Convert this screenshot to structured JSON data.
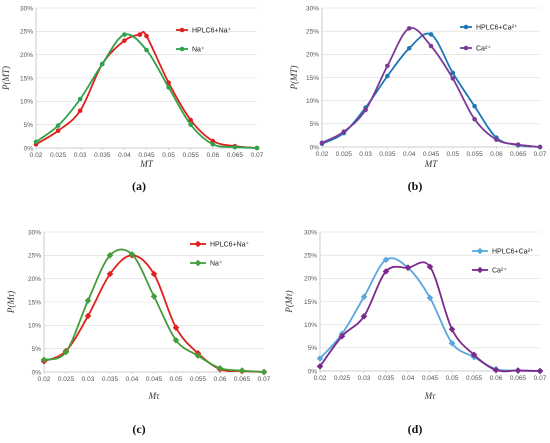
{
  "colors": {
    "red": "#e0201c",
    "green": "#2ea34b",
    "blue": "#1c78b4",
    "purple": "#7a3a98",
    "green_c": "#449d3a",
    "light_blue": "#5aa7dd",
    "purple_d": "#7b2a8c",
    "axis": "#bfbfbf",
    "grid": "#d9d9d9"
  },
  "chart_data": [
    {
      "id": "a",
      "panel_label": "(a)",
      "type": "line",
      "xlabel": "MT",
      "ylabel": "P(MT)",
      "xlim": [
        0.02,
        0.07
      ],
      "ylim": [
        0,
        30
      ],
      "x_ticks": [
        "0.02",
        "0.025",
        "0.03",
        "0.035",
        "0.04",
        "0.045",
        "0.05",
        "0.055",
        "0.06",
        "0.065",
        "0.07"
      ],
      "y_ticks": [
        "0%",
        "5%",
        "10%",
        "15%",
        "20%",
        "25%",
        "30%"
      ],
      "gridlines": true,
      "legend_position": "top-right",
      "series": [
        {
          "name": "HPLC6+Na⁺",
          "color_key": "red",
          "x": [
            0.02,
            0.025,
            0.03,
            0.035,
            0.04,
            0.0435,
            0.045,
            0.05,
            0.055,
            0.06,
            0.065,
            0.07
          ],
          "values": [
            0.8,
            3.7,
            8.0,
            18.0,
            23.0,
            24.3,
            24.0,
            14.0,
            6.0,
            1.5,
            0.4,
            0.0
          ]
        },
        {
          "name": "Na⁺",
          "color_key": "green",
          "x": [
            0.02,
            0.025,
            0.03,
            0.035,
            0.04,
            0.045,
            0.05,
            0.055,
            0.06,
            0.065,
            0.07
          ],
          "values": [
            1.3,
            4.8,
            10.5,
            18.0,
            24.3,
            21.0,
            13.0,
            5.0,
            0.8,
            0.2,
            0.0
          ]
        }
      ]
    },
    {
      "id": "b",
      "panel_label": "(b)",
      "type": "line",
      "xlabel": "MT",
      "ylabel": "P(MT)",
      "xlim": [
        0.02,
        0.07
      ],
      "ylim": [
        0,
        30
      ],
      "x_ticks": [
        "0.02",
        "0.025",
        "0.03",
        "0.035",
        "0.04",
        "0.045",
        "0.05",
        "0.055",
        "0.06",
        "0.065",
        "0.07"
      ],
      "y_ticks": [
        "0%",
        "5%",
        "10%",
        "15%",
        "20%",
        "25%",
        "30%"
      ],
      "gridlines": true,
      "legend_position": "top-right",
      "series": [
        {
          "name": "HPLC6+Ca²⁺",
          "color_key": "blue",
          "x": [
            0.02,
            0.025,
            0.03,
            0.035,
            0.04,
            0.045,
            0.05,
            0.055,
            0.06,
            0.065,
            0.07
          ],
          "values": [
            0.7,
            3.0,
            8.5,
            15.3,
            21.3,
            24.3,
            16.0,
            8.8,
            2.0,
            0.4,
            0.0
          ]
        },
        {
          "name": "Ca²⁺",
          "color_key": "purple",
          "x": [
            0.02,
            0.025,
            0.03,
            0.035,
            0.04,
            0.045,
            0.05,
            0.055,
            0.06,
            0.065,
            0.07
          ],
          "values": [
            0.9,
            3.3,
            8.0,
            17.5,
            25.6,
            21.8,
            14.8,
            6.0,
            1.6,
            0.5,
            0.0
          ]
        }
      ]
    },
    {
      "id": "c",
      "panel_label": "(c)",
      "type": "line",
      "xlabel": "Mτ",
      "ylabel": "P(Mτ)",
      "xlim": [
        0.02,
        0.07
      ],
      "ylim": [
        0,
        30
      ],
      "x_ticks": [
        "0.02",
        "0.025",
        "0.03",
        "0.035",
        "0.04",
        "0.045",
        "0.05",
        "0.055",
        "0.06",
        "0.065",
        "0.07"
      ],
      "y_ticks": [
        "0%",
        "5%",
        "10%",
        "15%",
        "20%",
        "25%",
        "30%"
      ],
      "gridlines": true,
      "legend_position": "top-right",
      "series": [
        {
          "name": "HPLC6+Na⁺",
          "color_key": "red",
          "x": [
            0.02,
            0.025,
            0.03,
            0.035,
            0.04,
            0.045,
            0.05,
            0.055,
            0.06,
            0.065,
            0.07
          ],
          "values": [
            2.3,
            4.5,
            12.0,
            21.0,
            25.0,
            21.0,
            9.5,
            4.0,
            0.6,
            0.2,
            0.0
          ]
        },
        {
          "name": "Na⁺",
          "color_key": "green_c",
          "x": [
            0.02,
            0.025,
            0.03,
            0.035,
            0.04,
            0.045,
            0.05,
            0.055,
            0.06,
            0.065,
            0.07
          ],
          "values": [
            2.6,
            4.3,
            15.3,
            25.0,
            25.2,
            16.2,
            6.8,
            3.5,
            0.8,
            0.3,
            0.0
          ]
        }
      ]
    },
    {
      "id": "d",
      "panel_label": "(d)",
      "type": "line",
      "xlabel": "Mτ",
      "ylabel": "P(Mτ)",
      "xlim": [
        0.02,
        0.07
      ],
      "ylim": [
        0,
        30
      ],
      "x_ticks": [
        "0.02",
        "0.025",
        "0.03",
        "0.035",
        "0.04",
        "0.045",
        "0.05",
        "0.055",
        "0.06",
        "0.065",
        "0.07"
      ],
      "y_ticks": [
        "0%",
        "5%",
        "10%",
        "15%",
        "20%",
        "25%",
        "30%"
      ],
      "gridlines": true,
      "legend_position": "top-right",
      "series": [
        {
          "name": "HPLC6+Ca²⁺",
          "color_key": "light_blue",
          "x": [
            0.02,
            0.025,
            0.03,
            0.035,
            0.04,
            0.045,
            0.05,
            0.055,
            0.06,
            0.065,
            0.07
          ],
          "values": [
            2.7,
            8.0,
            16.0,
            24.0,
            22.3,
            15.8,
            6.0,
            3.0,
            0.4,
            0.1,
            0.0
          ]
        },
        {
          "name": "Ca²⁺",
          "color_key": "purple_d",
          "x": [
            0.02,
            0.025,
            0.03,
            0.035,
            0.04,
            0.045,
            0.05,
            0.055,
            0.06,
            0.065,
            0.07
          ],
          "values": [
            1.0,
            7.5,
            11.8,
            21.5,
            22.3,
            22.5,
            9.0,
            3.5,
            0.2,
            0.1,
            0.0
          ]
        }
      ]
    }
  ]
}
